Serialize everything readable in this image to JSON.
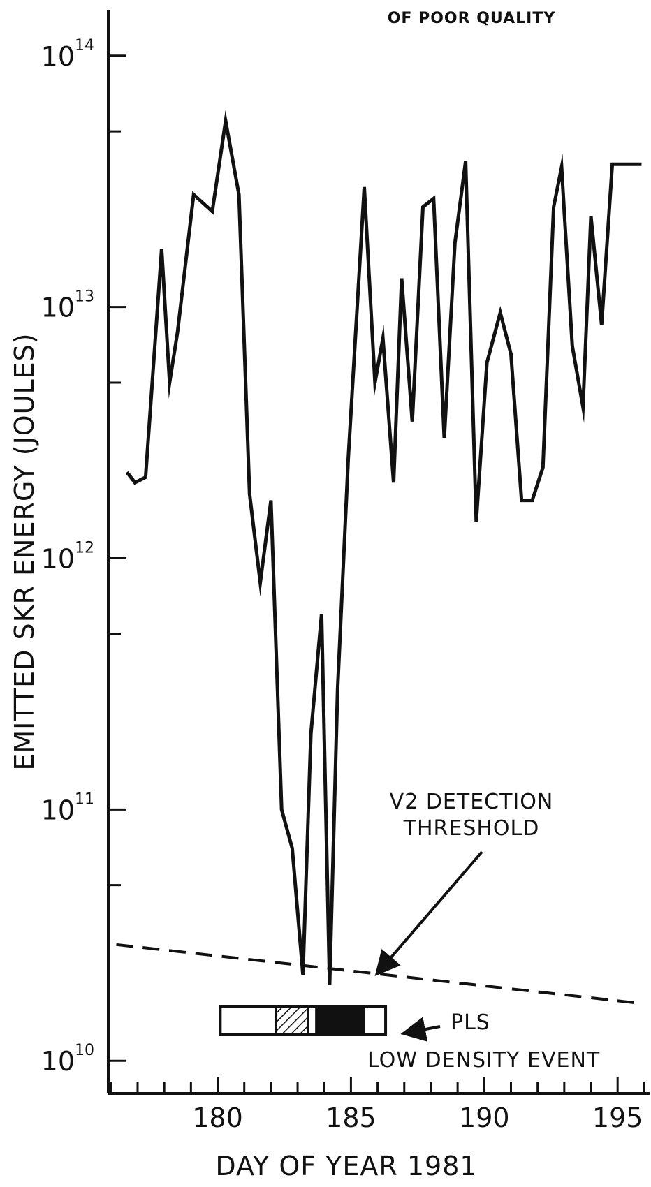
{
  "chart_data": {
    "type": "line",
    "title": "",
    "note": "OF POOR QUALITY",
    "xlabel": "DAY OF YEAR 1981",
    "ylabel": "EMITTED  SKR ENERGY (JOULES)",
    "y_scale": "log",
    "xlim": [
      175.9,
      196.2
    ],
    "ylim_exp": [
      9.87,
      14.18
    ],
    "grid": false,
    "x_ticks": [
      180,
      185,
      190,
      195
    ],
    "x_tick_labels": [
      "180",
      "185",
      "190",
      "195"
    ],
    "y_ticks": [
      {
        "base": "10",
        "exp": "10",
        "value_exp": 10
      },
      {
        "base": "10",
        "exp": "11",
        "value_exp": 11
      },
      {
        "base": "10",
        "exp": "12",
        "value_exp": 12
      },
      {
        "base": "10",
        "exp": "13",
        "value_exp": 13
      },
      {
        "base": "10",
        "exp": "14",
        "value_exp": 14
      }
    ],
    "series": [
      {
        "style": "solid",
        "x": [
          176.6,
          176.9,
          177.3,
          177.9,
          178.2,
          178.5,
          179.1,
          179.8,
          180.3,
          180.8,
          181.2,
          181.6,
          182.0,
          182.4,
          182.8,
          183.2,
          183.5,
          183.9,
          184.2,
          184.5,
          184.9,
          185.5,
          185.9,
          186.2,
          186.6,
          186.9,
          187.3,
          187.7,
          188.1,
          188.5,
          188.9,
          189.3,
          189.7,
          190.1,
          190.6,
          191.0,
          191.4,
          191.8,
          192.2,
          192.6,
          192.9,
          193.3,
          193.7,
          194.0,
          194.4,
          194.8,
          195.1,
          195.5,
          195.9
        ],
        "y": [
          2200000000000.0,
          2000000000000.0,
          2100000000000.0,
          17000000000000.0,
          5000000000000.0,
          8000000000000.0,
          28000000000000.0,
          24000000000000.0,
          55000000000000.0,
          28000000000000.0,
          1800000000000.0,
          800000000000.0,
          1700000000000.0,
          100000000000.0,
          70000000000.0,
          22000000000.0,
          200000000000.0,
          600000000000.0,
          20000000000.0,
          300000000000.0,
          2500000000000.0,
          30000000000000.0,
          5000000000000.0,
          7500000000000.0,
          2000000000000.0,
          13000000000000.0,
          3500000000000.0,
          25000000000000.0,
          27000000000000.0,
          3000000000000.0,
          18000000000000.0,
          38000000000000.0,
          1400000000000.0,
          6000000000000.0,
          9500000000000.0,
          6500000000000.0,
          1700000000000.0,
          1700000000000.0,
          2300000000000.0,
          25000000000000.0,
          36000000000000.0,
          7000000000000.0,
          4000000000000.0,
          23000000000000.0,
          8500000000000.0,
          37000000000000.0,
          37000000000000.0,
          37000000000000.0,
          37000000000000.0
        ]
      },
      {
        "name": "V2 DETECTION THRESHOLD",
        "style": "dashed",
        "x": [
          176.2,
          195.7
        ],
        "y": [
          29000000000.0,
          17000000000.0
        ]
      }
    ],
    "annotations": [
      {
        "text_lines": [
          "V2 DETECTION",
          "THRESHOLD"
        ],
        "arrow_to": {
          "x": 185.8,
          "y": 21000000000.0
        }
      },
      {
        "text_lines": [
          "PLS",
          "LOW DENSITY EVENT"
        ],
        "arrow_to": {
          "x": 186.9,
          "y": 13000000000.0
        }
      }
    ],
    "event_bar": {
      "x_start": 180.1,
      "x_end": 186.3,
      "segments": [
        {
          "x_start": 180.1,
          "x_end": 182.2,
          "fill": "none"
        },
        {
          "x_start": 182.2,
          "x_end": 183.4,
          "fill": "hatched"
        },
        {
          "x_start": 183.4,
          "x_end": 183.7,
          "fill": "none"
        },
        {
          "x_start": 183.7,
          "x_end": 185.5,
          "fill": "solid"
        },
        {
          "x_start": 185.5,
          "x_end": 186.3,
          "fill": "none"
        }
      ]
    }
  }
}
